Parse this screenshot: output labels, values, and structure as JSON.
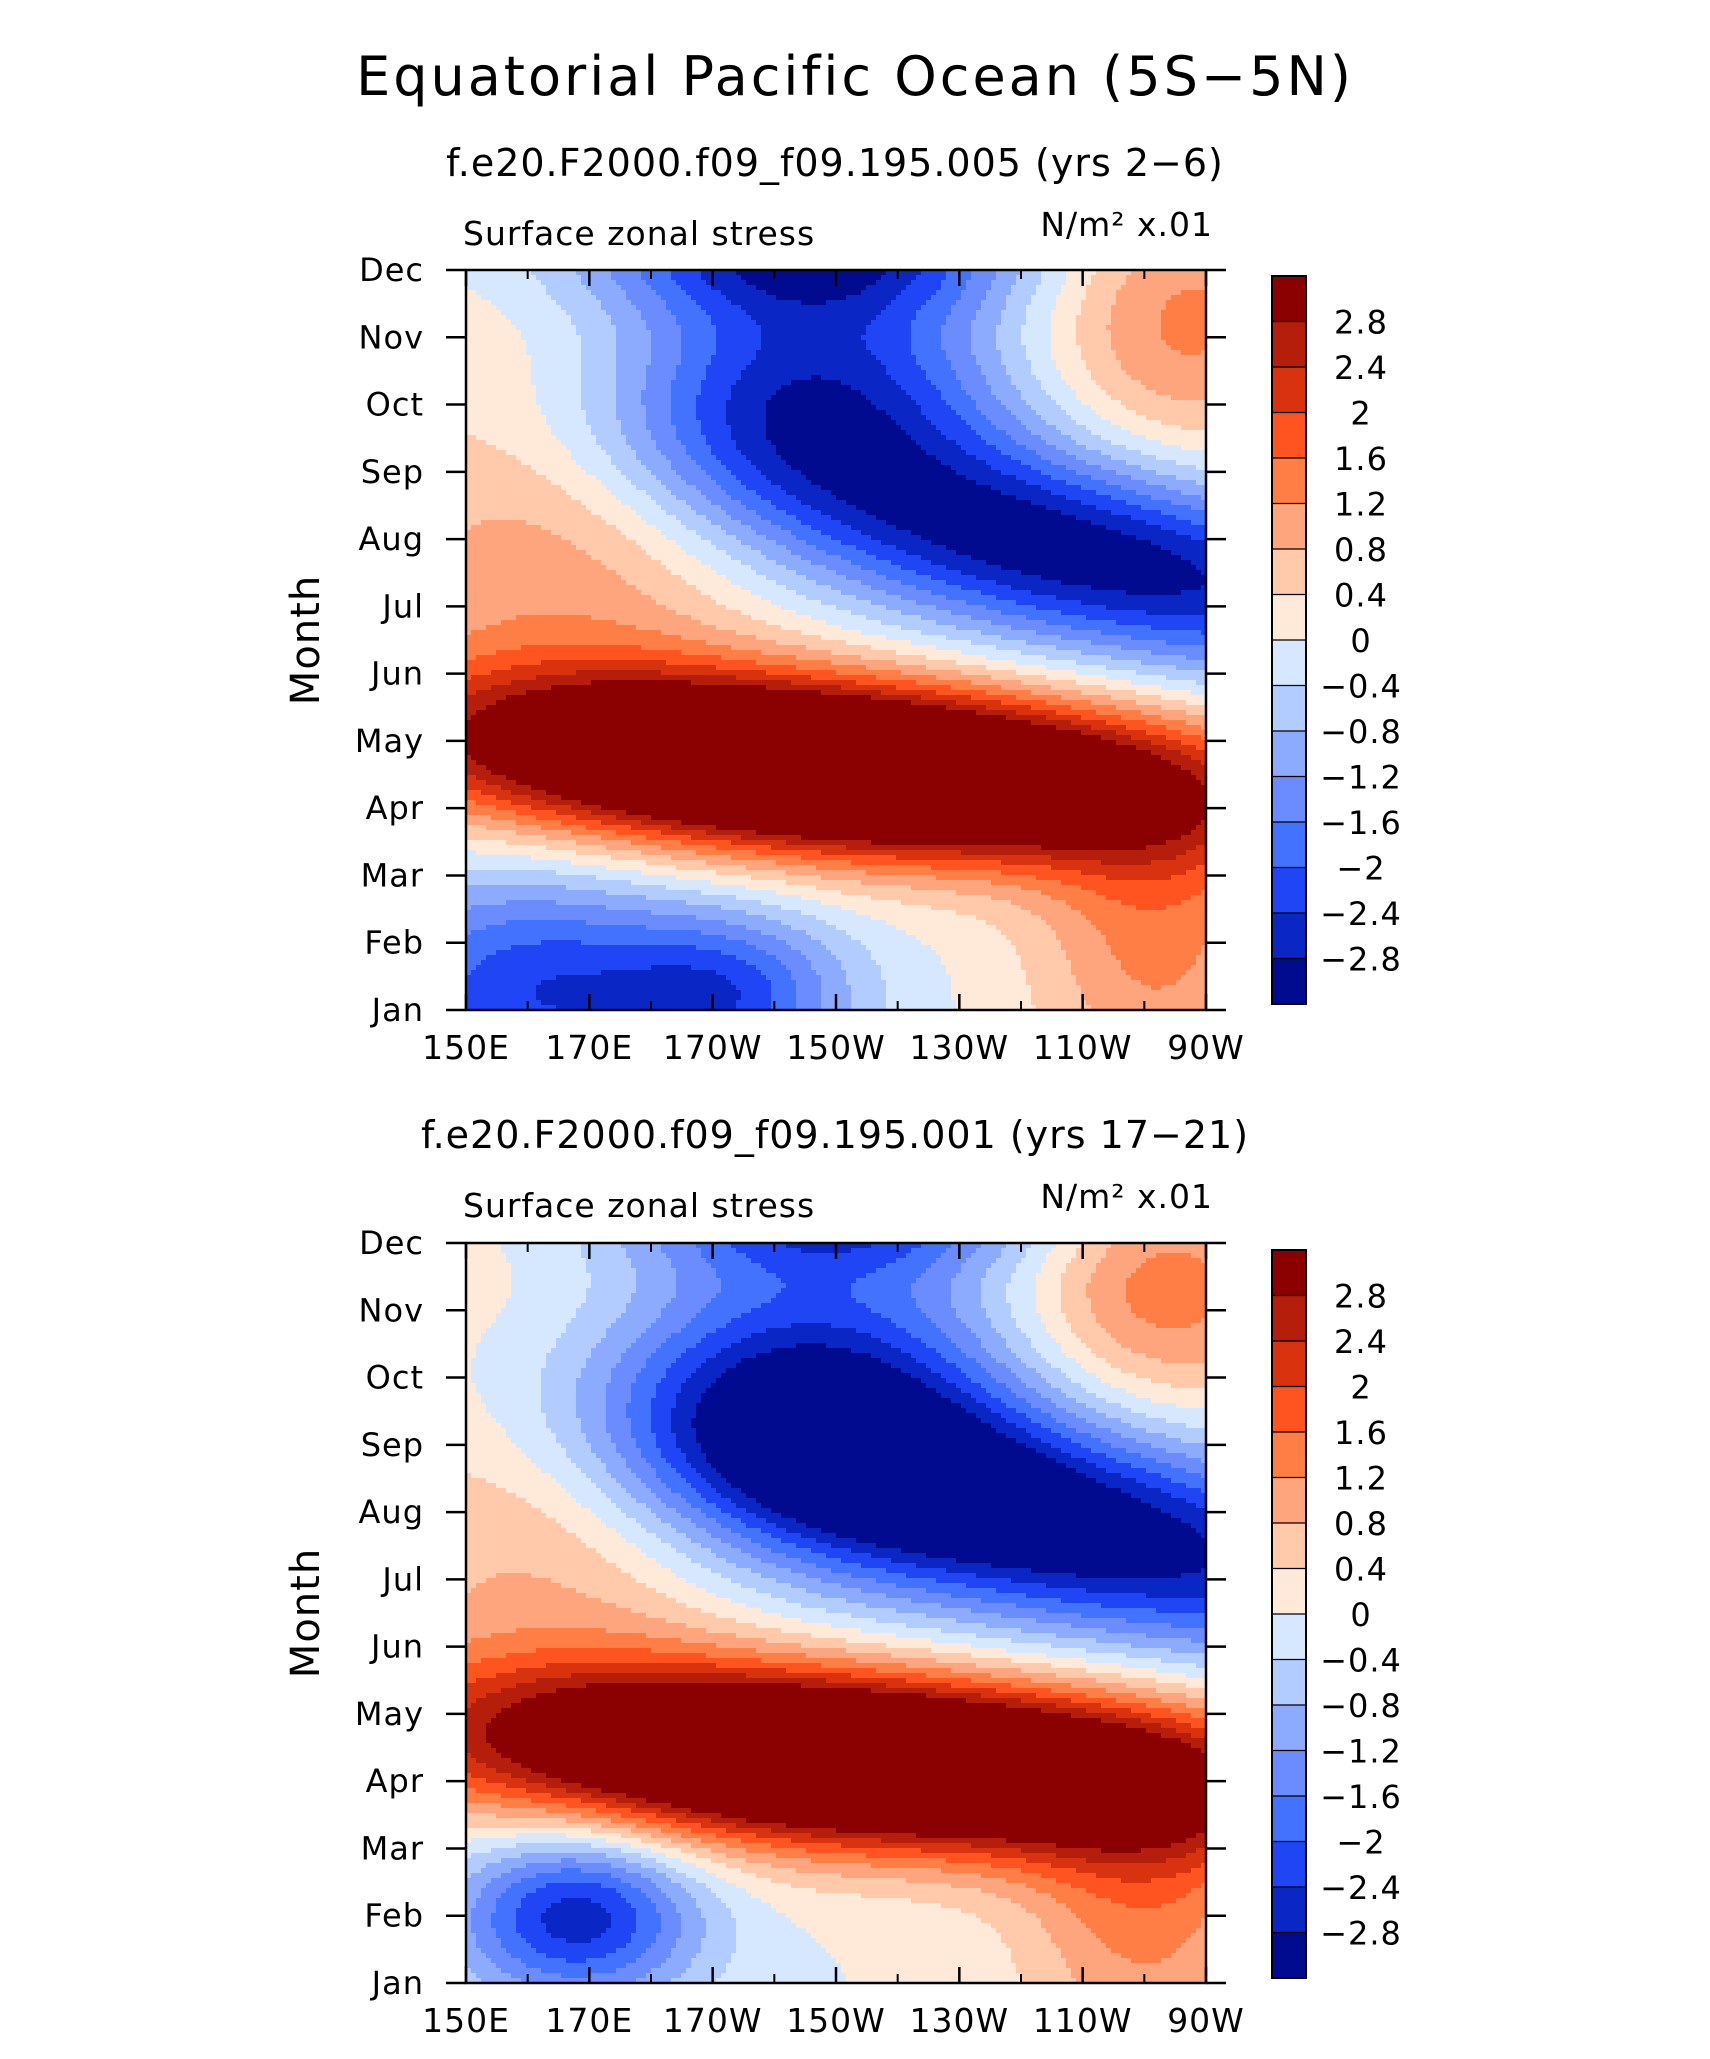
{
  "main_title": "Equatorial Pacific Ocean (5S−5N)",
  "colorbar": {
    "labels": [
      "2.8",
      "2.4",
      "2",
      "1.6",
      "1.2",
      "0.8",
      "0.4",
      "0",
      "−0.4",
      "−0.8",
      "−1.2",
      "−1.6",
      "−2",
      "−2.4",
      "−2.8"
    ],
    "colors": [
      "#8b0000",
      "#b51e0a",
      "#d9320f",
      "#ff5320",
      "#ff7e46",
      "#ffa57e",
      "#ffc9aa",
      "#ffe9d8",
      "#d6e8ff",
      "#b3ccff",
      "#8cabff",
      "#6b8cff",
      "#4372ff",
      "#1f45f5",
      "#0a26c4",
      "#000b8f"
    ]
  },
  "chart_data": [
    {
      "type": "heatmap",
      "subtitle": "f.e20.F2000.f09_f09.195.005 (yrs 2−6)",
      "variable_label": "Surface zonal stress",
      "units_label": "N/m² x.01",
      "ylabel": "Month",
      "x_ticks": [
        "150E",
        "170E",
        "170W",
        "150W",
        "130W",
        "110W",
        "90W"
      ],
      "x_range_deg_east": [
        150,
        270
      ],
      "y_ticks": [
        "Jan",
        "Feb",
        "Mar",
        "Apr",
        "May",
        "Jun",
        "Jul",
        "Aug",
        "Sep",
        "Oct",
        "Nov",
        "Dec"
      ],
      "levels": [
        -2.8,
        -2.4,
        -2,
        -1.6,
        -1.2,
        -0.8,
        -0.4,
        0,
        0.4,
        0.8,
        1.2,
        1.6,
        2,
        2.4,
        2.8
      ],
      "features": [
        {
          "lon": 210,
          "month": 3.6,
          "amplitude": 6.2,
          "lon_width": 42,
          "month_width": 0.9,
          "tilt": -1.5
        },
        {
          "lon": 250,
          "month": 6.8,
          "amplitude": -3.2,
          "lon_width": 34,
          "month_width": 1.3,
          "tilt": -2
        },
        {
          "lon": 205,
          "month": 9.3,
          "amplitude": -2.5,
          "lon_width": 24,
          "month_width": 1.2,
          "tilt": 0
        },
        {
          "lon": 205,
          "month": 11.3,
          "amplitude": -2.6,
          "lon_width": 26,
          "month_width": 0.7,
          "tilt": 0
        },
        {
          "lon": 160,
          "month": 0.3,
          "amplitude": -2.3,
          "lon_width": 20,
          "month_width": 1.3,
          "tilt": 0
        },
        {
          "lon": 193,
          "month": 0.2,
          "amplitude": -1.9,
          "lon_width": 14,
          "month_width": 0.9,
          "tilt": 0
        },
        {
          "lon": 265,
          "month": 10.3,
          "amplitude": 1.4,
          "lon_width": 18,
          "month_width": 1.6,
          "tilt": 0
        },
        {
          "lon": 165,
          "month": 7.0,
          "amplitude": 1.1,
          "lon_width": 24,
          "month_width": 2.6,
          "tilt": 0
        },
        {
          "lon": 262,
          "month": 1.0,
          "amplitude": 1.3,
          "lon_width": 14,
          "month_width": 1.6,
          "tilt": 0
        }
      ]
    },
    {
      "type": "heatmap",
      "subtitle": "f.e20.F2000.f09_f09.195.001 (yrs 17−21)",
      "variable_label": "Surface zonal stress",
      "units_label": "N/m² x.01",
      "ylabel": "Month",
      "x_ticks": [
        "150E",
        "170E",
        "170W",
        "150W",
        "130W",
        "110W",
        "90W"
      ],
      "x_range_deg_east": [
        150,
        270
      ],
      "y_ticks": [
        "Jan",
        "Feb",
        "Mar",
        "Apr",
        "May",
        "Jun",
        "Jul",
        "Aug",
        "Sep",
        "Oct",
        "Nov",
        "Dec"
      ],
      "levels": [
        -2.8,
        -2.4,
        -2,
        -1.6,
        -1.2,
        -0.8,
        -0.4,
        0,
        0.4,
        0.8,
        1.2,
        1.6,
        2,
        2.4,
        2.8
      ],
      "features": [
        {
          "lon": 215,
          "month": 3.3,
          "amplitude": 6.0,
          "lon_width": 44,
          "month_width": 0.9,
          "tilt": -1.5
        },
        {
          "lon": 243,
          "month": 6.9,
          "amplitude": -3.4,
          "lon_width": 36,
          "month_width": 1.4,
          "tilt": -2
        },
        {
          "lon": 205,
          "month": 8.8,
          "amplitude": -2.6,
          "lon_width": 24,
          "month_width": 1.6,
          "tilt": 0
        },
        {
          "lon": 210,
          "month": 11.4,
          "amplitude": -2.0,
          "lon_width": 24,
          "month_width": 0.6,
          "tilt": 0
        },
        {
          "lon": 168,
          "month": 1.0,
          "amplitude": -2.7,
          "lon_width": 14,
          "month_width": 0.9,
          "tilt": 0
        },
        {
          "lon": 262,
          "month": 10.3,
          "amplitude": 1.5,
          "lon_width": 16,
          "month_width": 1.3,
          "tilt": 0
        },
        {
          "lon": 165,
          "month": 7.0,
          "amplitude": 1.0,
          "lon_width": 24,
          "month_width": 2.6,
          "tilt": 0
        },
        {
          "lon": 260,
          "month": 1.0,
          "amplitude": 1.3,
          "lon_width": 14,
          "month_width": 1.6,
          "tilt": 0
        }
      ]
    }
  ]
}
